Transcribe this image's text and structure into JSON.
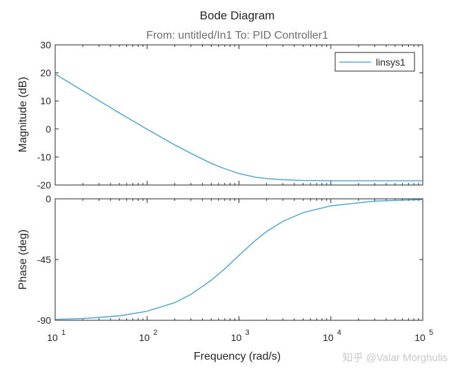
{
  "chart_data": {
    "type": "line",
    "title": "Bode Diagram",
    "subtitle": "From: untitled/In1  To: PID Controller1",
    "xlabel": "Frequency  (rad/s)",
    "xscale": "log",
    "xlim": [
      10,
      100000
    ],
    "x_ticks": [
      {
        "base": "10",
        "exp": "1"
      },
      {
        "base": "10",
        "exp": "2"
      },
      {
        "base": "10",
        "exp": "3"
      },
      {
        "base": "10",
        "exp": "4"
      },
      {
        "base": "10",
        "exp": "5"
      }
    ],
    "legend": {
      "entries": [
        "linsys1"
      ],
      "position": "top-right"
    },
    "series_color": "#3a9ad1",
    "magnitude": {
      "ylabel": "Magnitude (dB)",
      "ylim": [
        -20,
        30
      ],
      "y_ticks": [
        "30",
        "20",
        "10",
        "0",
        "-10",
        "-20"
      ],
      "series": [
        {
          "name": "linsys1",
          "x": [
            10,
            20,
            50,
            100,
            200,
            300,
            500,
            700,
            1000,
            1500,
            2000,
            3000,
            5000,
            10000,
            30000,
            100000
          ],
          "values": [
            19.6,
            13.6,
            5.7,
            -0.1,
            -5.7,
            -8.7,
            -12.3,
            -14.2,
            -15.9,
            -17.2,
            -17.7,
            -18.1,
            -18.4,
            -18.5,
            -18.5,
            -18.5
          ]
        }
      ]
    },
    "phase": {
      "ylabel": "Phase (deg)",
      "ylim": [
        -90,
        0
      ],
      "y_ticks": [
        "0",
        "-45",
        "-90"
      ],
      "series": [
        {
          "name": "linsys1",
          "x": [
            10,
            20,
            50,
            100,
            200,
            300,
            500,
            700,
            1000,
            1500,
            2000,
            3000,
            5000,
            10000,
            30000,
            100000
          ],
          "values": [
            -89.3,
            -88.7,
            -86.7,
            -83.3,
            -76.9,
            -70.8,
            -60.3,
            -51.9,
            -41.9,
            -31.0,
            -24.2,
            -16.7,
            -10.2,
            -5.2,
            -1.7,
            -0.5
          ]
        }
      ]
    }
  },
  "watermark": "知乎 @Valar Morghulis"
}
